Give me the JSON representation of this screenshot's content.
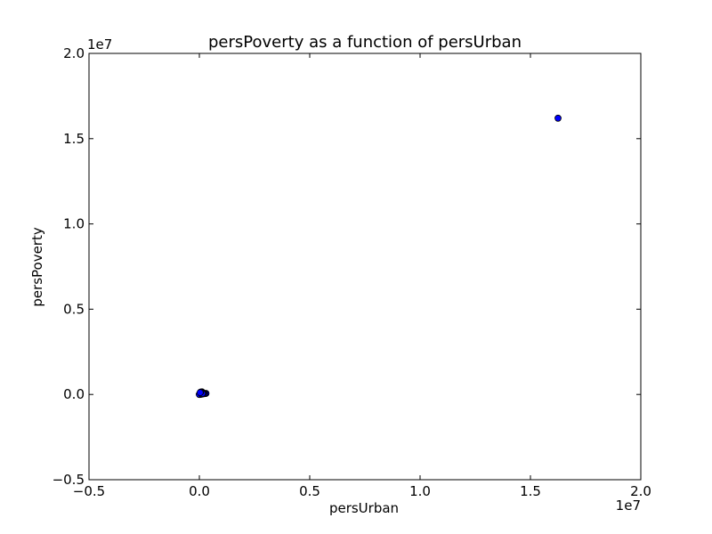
{
  "chart_data": {
    "type": "scatter",
    "title": "persPoverty as a function of persUrban",
    "xlabel": "persUrban",
    "ylabel": "persPoverty",
    "x_offset_label": "1e7",
    "y_offset_label": "1e7",
    "xlim": [
      -5000000,
      20000000
    ],
    "ylim": [
      -5000000,
      20000000
    ],
    "x_ticks": [
      -5000000,
      0,
      5000000,
      10000000,
      15000000,
      20000000
    ],
    "x_tick_labels": [
      "−0.5",
      "0.0",
      "0.5",
      "1.0",
      "1.5",
      "2.0"
    ],
    "y_ticks": [
      -5000000,
      0,
      5000000,
      10000000,
      15000000,
      20000000
    ],
    "y_tick_labels": [
      "−0.5",
      "0.0",
      "0.5",
      "1.0",
      "1.5",
      "2.0"
    ],
    "grid": false,
    "marker_color": "#0000ff",
    "marker_edge_color": "#000000",
    "points": [
      {
        "x": 16250000,
        "y": 16200000
      },
      {
        "x": 300000,
        "y": 60000
      },
      {
        "x": 250000,
        "y": 50000
      },
      {
        "x": 200000,
        "y": 70000
      },
      {
        "x": 180000,
        "y": 40000
      },
      {
        "x": 150000,
        "y": 90000
      },
      {
        "x": 120000,
        "y": 150000
      },
      {
        "x": 100000,
        "y": 130000
      },
      {
        "x": 90000,
        "y": 30000
      },
      {
        "x": 80000,
        "y": 100000
      },
      {
        "x": 70000,
        "y": 20000
      },
      {
        "x": 60000,
        "y": 80000
      },
      {
        "x": 50000,
        "y": 60000
      },
      {
        "x": 40000,
        "y": 10000
      },
      {
        "x": 30000,
        "y": 40000
      },
      {
        "x": 20000,
        "y": 5000
      },
      {
        "x": 15000,
        "y": 25000
      },
      {
        "x": 10000,
        "y": 0
      },
      {
        "x": 5000,
        "y": 15000
      },
      {
        "x": 0,
        "y": 0
      },
      {
        "x": 110000,
        "y": 20000
      },
      {
        "x": 140000,
        "y": 60000
      },
      {
        "x": 60000,
        "y": 140000
      },
      {
        "x": 35000,
        "y": 110000
      }
    ]
  }
}
